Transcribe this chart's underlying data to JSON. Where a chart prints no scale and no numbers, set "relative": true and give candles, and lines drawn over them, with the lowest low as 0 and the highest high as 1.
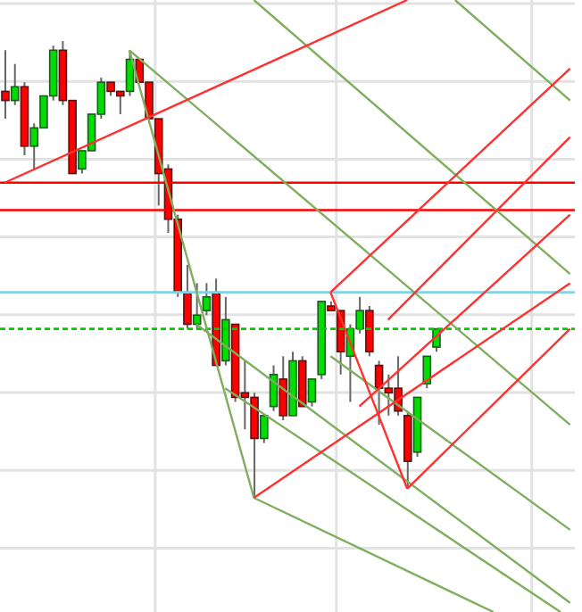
{
  "chart_data": {
    "type": "candlestick",
    "relative": true,
    "grid": true,
    "tick_labels": false,
    "categories": [
      null,
      null,
      null,
      null,
      null,
      null,
      null,
      null,
      null,
      null,
      null,
      null,
      null,
      null,
      null,
      null,
      null,
      null,
      null,
      null,
      null,
      null,
      null,
      null,
      null,
      null,
      null,
      null,
      null,
      null,
      null,
      null,
      null,
      null,
      null,
      null,
      null,
      null,
      null,
      null,
      null,
      null,
      null,
      null,
      null,
      null,
      null,
      null,
      null,
      null,
      null,
      null,
      null,
      null,
      null,
      null,
      null,
      null,
      null,
      null
    ],
    "ohlc": [
      [
        0.89,
        0.98,
        0.83,
        0.87
      ],
      [
        0.87,
        0.95,
        0.86,
        0.9
      ],
      [
        0.9,
        0.91,
        0.75,
        0.77
      ],
      [
        0.77,
        0.82,
        0.72,
        0.81
      ],
      [
        0.81,
        0.88,
        0.81,
        0.88
      ],
      [
        0.88,
        0.99,
        0.87,
        0.98
      ],
      [
        0.98,
        1,
        0.86,
        0.87
      ],
      [
        0.87,
        0.87,
        0.71,
        0.71
      ],
      [
        0.72,
        0.76,
        0.71,
        0.76
      ],
      [
        0.76,
        0.84,
        0.76,
        0.84
      ],
      [
        0.84,
        0.92,
        0.83,
        0.91
      ],
      [
        0.91,
        0.91,
        0.88,
        0.89
      ],
      [
        0.89,
        0.89,
        0.84,
        0.88
      ],
      [
        0.89,
        0.98,
        0.88,
        0.96
      ],
      [
        0.96,
        0.96,
        0.91,
        0.91
      ],
      [
        0.91,
        0.91,
        0.82,
        0.83
      ],
      [
        0.83,
        0.83,
        0.64,
        0.71
      ],
      [
        0.72,
        0.73,
        0.58,
        0.61
      ],
      [
        0.61,
        0.62,
        0.44,
        0.45
      ],
      [
        0.45,
        0.51,
        0.37,
        0.38
      ],
      [
        0.38,
        0.47,
        0.37,
        0.4
      ],
      [
        0.41,
        0.47,
        0.4,
        0.44
      ],
      [
        0.45,
        0.48,
        0.29,
        0.29
      ],
      [
        0.3,
        0.44,
        0.29,
        0.39
      ],
      [
        0.38,
        0.38,
        0.21,
        0.22
      ],
      [
        0.23,
        0.3,
        0.15,
        0.22
      ],
      [
        0.22,
        0.23,
        0,
        0.13
      ],
      [
        0.13,
        0.18,
        0.12,
        0.18
      ],
      [
        0.2,
        0.29,
        0.19,
        0.27
      ],
      [
        0.26,
        0.31,
        0.17,
        0.18
      ],
      [
        0.18,
        0.32,
        0.18,
        0.3
      ],
      [
        0.3,
        0.31,
        0.2,
        0.2
      ],
      [
        0.21,
        0.26,
        0.2,
        0.26
      ],
      [
        0.27,
        0.43,
        0.26,
        0.43
      ],
      [
        0.42,
        0.43,
        0.41,
        0.41
      ],
      [
        0.41,
        0.41,
        0.27,
        0.32
      ],
      [
        0.31,
        0.38,
        0.21,
        0.37
      ],
      [
        0.37,
        0.44,
        0.36,
        0.41
      ],
      [
        0.41,
        0.42,
        0.31,
        0.32
      ],
      [
        0.29,
        0.3,
        0.16,
        0.24
      ],
      [
        0.24,
        0.27,
        0.18,
        0.23
      ],
      [
        0.24,
        0.31,
        0.18,
        0.19
      ],
      [
        0.18,
        0.19,
        0.02,
        0.08
      ],
      [
        0.1,
        0.22,
        0.09,
        0.22
      ],
      [
        0.25,
        0.31,
        0.24,
        0.31
      ],
      [
        0.33,
        0.37,
        0.32,
        0.37
      ],
      null,
      null,
      null,
      null,
      null,
      null,
      null,
      null,
      null,
      null,
      null,
      null,
      null,
      null
    ],
    "colors": [
      "#ff0000",
      "#00dd00",
      "#ff0000",
      "#00dd00",
      "#00dd00",
      "#00dd00",
      "#ff0000",
      "#ff0000",
      "#00dd00",
      "#00dd00",
      "#00dd00",
      "#ff0000",
      "#ff0000",
      "#00dd00",
      "#ff0000",
      "#ff0000",
      "#ff0000",
      "#ff0000",
      "#ff0000",
      "#ff0000",
      "#00dd00",
      "#00dd00",
      "#ff0000",
      "#00dd00",
      "#ff0000",
      "#ff0000",
      "#ff0000",
      "#00dd00",
      "#00dd00",
      "#ff0000",
      "#00dd00",
      "#ff0000",
      "#00dd00",
      "#00dd00",
      "#ff0000",
      "#ff0000",
      "#00dd00",
      "#00dd00",
      "#ff0000",
      "#ff0000",
      "#ff0000",
      "#ff0000",
      "#ff0000",
      "#00dd00",
      "#00dd00",
      "#00dd00",
      null,
      null,
      null,
      null,
      null,
      null,
      null,
      null,
      null,
      null,
      null,
      null,
      null,
      null
    ],
    "series": [
      {
        "type": "line",
        "color": "#7fae5e",
        "values": [
          null,
          null,
          null,
          null,
          null,
          null,
          null,
          null,
          null,
          null,
          null,
          null,
          null,
          0.98,
          null,
          null,
          null,
          null,
          null,
          null,
          null,
          null,
          null,
          null,
          null,
          null,
          0,
          null,
          null,
          null,
          null,
          null,
          null,
          null,
          null,
          null,
          null,
          null,
          null,
          null,
          null,
          null,
          null,
          null,
          null,
          null,
          null,
          null,
          null,
          null,
          null,
          null,
          null,
          null,
          null,
          null,
          null,
          null,
          null,
          null
        ]
      },
      {
        "type": "line",
        "color": "#7fae5e",
        "values": [
          null,
          null,
          null,
          null,
          null,
          null,
          null,
          null,
          null,
          null,
          null,
          null,
          null,
          0.98,
          null,
          null,
          null,
          null,
          null,
          null,
          null,
          null,
          null,
          null,
          null,
          null,
          null,
          null,
          null,
          null,
          null,
          null,
          null,
          null,
          null,
          null,
          null,
          null,
          null,
          null,
          null,
          null,
          null,
          null,
          null,
          null,
          null,
          null,
          null,
          null,
          null,
          null,
          null,
          null,
          null,
          null,
          null,
          null,
          null,
          0.16
        ]
      },
      {
        "type": "line",
        "color": "#7fae5e",
        "values": [
          null,
          null,
          null,
          null,
          null,
          null,
          null,
          null,
          null,
          null,
          null,
          null,
          null,
          null,
          null,
          null,
          null,
          null,
          null,
          null,
          null,
          null,
          null,
          null,
          null,
          null,
          1.09,
          null,
          null,
          null,
          null,
          null,
          null,
          null,
          null,
          null,
          null,
          null,
          null,
          null,
          null,
          null,
          null,
          null,
          null,
          null,
          null,
          null,
          null,
          null,
          null,
          null,
          null,
          null,
          null,
          null,
          null,
          null,
          null,
          0.49
        ]
      },
      {
        "type": "line",
        "color": "#7fae5e",
        "values": [
          null,
          null,
          null,
          null,
          null,
          null,
          null,
          null,
          null,
          null,
          null,
          null,
          null,
          null,
          null,
          null,
          null,
          null,
          null,
          null,
          null,
          null,
          null,
          null,
          null,
          null,
          null,
          null,
          null,
          null,
          null,
          null,
          null,
          null,
          null,
          null,
          null,
          null,
          null,
          null,
          null,
          null,
          null,
          null,
          null,
          null,
          null,
          1.09,
          null,
          null,
          null,
          null,
          null,
          null,
          null,
          null,
          null,
          null,
          null,
          0.87
        ]
      },
      {
        "type": "line",
        "color": "#7fae5e",
        "values": [
          null,
          null,
          null,
          null,
          null,
          null,
          null,
          null,
          null,
          null,
          null,
          null,
          null,
          null,
          null,
          null,
          null,
          null,
          null,
          null,
          0.38,
          null,
          null,
          null,
          null,
          null,
          null,
          null,
          null,
          null,
          null,
          null,
          null,
          null,
          null,
          null,
          null,
          null,
          null,
          null,
          null,
          null,
          null,
          null,
          null,
          null,
          null,
          null,
          null,
          null,
          null,
          null,
          null,
          null,
          null,
          null,
          null,
          null,
          null,
          -0.23
        ]
      },
      {
        "type": "line",
        "color": "#7fae5e",
        "values": [
          null,
          null,
          null,
          null,
          null,
          null,
          null,
          null,
          null,
          null,
          null,
          null,
          null,
          null,
          null,
          null,
          null,
          null,
          null,
          null,
          null,
          null,
          null,
          null,
          null,
          null,
          0,
          null,
          null,
          null,
          null,
          null,
          null,
          null,
          null,
          null,
          null,
          null,
          null,
          null,
          null,
          null,
          null,
          null,
          null,
          null,
          null,
          null,
          null,
          null,
          null,
          -0.25,
          null,
          null,
          null,
          null,
          null,
          null,
          null,
          null
        ]
      },
      {
        "type": "line",
        "color": "#7fae5e",
        "values": [
          null,
          null,
          null,
          null,
          null,
          null,
          null,
          null,
          null,
          null,
          null,
          null,
          null,
          null,
          null,
          null,
          null,
          null,
          null,
          null,
          null,
          null,
          null,
          0.24,
          null,
          null,
          null,
          null,
          null,
          null,
          null,
          null,
          null,
          null,
          null,
          null,
          null,
          null,
          null,
          null,
          null,
          null,
          null,
          null,
          null,
          null,
          null,
          null,
          null,
          null,
          null,
          null,
          null,
          null,
          null,
          null,
          null,
          null,
          -0.25,
          null
        ]
      },
      {
        "type": "line",
        "color": "#7fae5e",
        "values": [
          null,
          null,
          null,
          null,
          null,
          null,
          null,
          null,
          null,
          null,
          null,
          null,
          null,
          null,
          null,
          null,
          null,
          null,
          null,
          null,
          null,
          null,
          null,
          null,
          null,
          null,
          null,
          null,
          null,
          null,
          null,
          null,
          null,
          null,
          0.31,
          null,
          null,
          null,
          null,
          null,
          null,
          null,
          null,
          null,
          null,
          null,
          null,
          null,
          null,
          null,
          null,
          null,
          null,
          null,
          null,
          null,
          null,
          null,
          null,
          -0.07
        ]
      },
      {
        "type": "line",
        "color": "#ff3030",
        "values": [
          0.69,
          null,
          null,
          null,
          null,
          null,
          null,
          null,
          null,
          null,
          null,
          null,
          null,
          null,
          null,
          null,
          null,
          null,
          null,
          null,
          null,
          null,
          null,
          null,
          null,
          null,
          null,
          null,
          null,
          null,
          null,
          null,
          null,
          null,
          null,
          null,
          null,
          null,
          null,
          null,
          null,
          null,
          1.09,
          null,
          null,
          null,
          null,
          null,
          null,
          null,
          null,
          null,
          null,
          null,
          null,
          null,
          null,
          null,
          null,
          null
        ]
      },
      {
        "type": "line",
        "color": "#ff3030",
        "values": [
          null,
          null,
          null,
          null,
          null,
          null,
          null,
          null,
          null,
          null,
          null,
          null,
          null,
          null,
          null,
          null,
          null,
          null,
          null,
          null,
          null,
          null,
          null,
          null,
          null,
          null,
          0,
          null,
          null,
          null,
          null,
          null,
          null,
          null,
          null,
          null,
          null,
          null,
          null,
          null,
          null,
          null,
          null,
          null,
          null,
          null,
          null,
          null,
          null,
          null,
          null,
          null,
          null,
          null,
          null,
          null,
          null,
          null,
          null,
          0.47
        ]
      },
      {
        "type": "line",
        "color": "#ff3030",
        "values": [
          null,
          null,
          null,
          null,
          null,
          null,
          null,
          null,
          null,
          null,
          null,
          null,
          null,
          null,
          null,
          null,
          null,
          null,
          null,
          null,
          null,
          null,
          null,
          null,
          null,
          null,
          null,
          null,
          null,
          null,
          null,
          null,
          null,
          null,
          null,
          null,
          null,
          null,
          null,
          null,
          null,
          null,
          0.02,
          null,
          null,
          null,
          null,
          null,
          null,
          null,
          null,
          null,
          null,
          null,
          null,
          null,
          null,
          null,
          null,
          0.37
        ]
      },
      {
        "type": "line",
        "color": "#ff3030",
        "values": [
          null,
          null,
          null,
          null,
          null,
          null,
          null,
          null,
          null,
          null,
          null,
          null,
          null,
          null,
          null,
          null,
          null,
          null,
          null,
          null,
          null,
          null,
          null,
          null,
          null,
          null,
          null,
          null,
          null,
          null,
          null,
          null,
          null,
          null,
          0.45,
          null,
          null,
          null,
          null,
          null,
          null,
          null,
          0.02,
          null,
          null,
          null,
          null,
          null,
          null,
          null,
          null,
          null,
          null,
          null,
          null,
          null,
          null,
          null,
          null,
          null
        ]
      },
      {
        "type": "line",
        "color": "#ff3030",
        "values": [
          null,
          null,
          null,
          null,
          null,
          null,
          null,
          null,
          null,
          null,
          null,
          null,
          null,
          null,
          null,
          null,
          null,
          null,
          null,
          null,
          null,
          null,
          null,
          null,
          null,
          null,
          null,
          null,
          null,
          null,
          null,
          null,
          null,
          null,
          0.45,
          null,
          null,
          null,
          null,
          null,
          null,
          null,
          null,
          null,
          null,
          null,
          null,
          null,
          null,
          null,
          null,
          null,
          null,
          null,
          null,
          null,
          null,
          null,
          null,
          0.94
        ]
      },
      {
        "type": "line",
        "color": "#ff3030",
        "values": [
          null,
          null,
          null,
          null,
          null,
          null,
          null,
          null,
          null,
          null,
          null,
          null,
          null,
          null,
          null,
          null,
          null,
          null,
          null,
          null,
          null,
          null,
          null,
          null,
          null,
          null,
          null,
          null,
          null,
          null,
          null,
          null,
          null,
          null,
          null,
          null,
          null,
          null,
          null,
          null,
          0.39,
          null,
          null,
          null,
          null,
          null,
          null,
          null,
          null,
          null,
          null,
          null,
          null,
          null,
          null,
          null,
          null,
          null,
          null,
          0.79
        ]
      },
      {
        "type": "line",
        "color": "#ff3030",
        "values": [
          null,
          null,
          null,
          null,
          null,
          null,
          null,
          null,
          null,
          null,
          null,
          null,
          null,
          null,
          null,
          null,
          null,
          null,
          null,
          null,
          null,
          null,
          null,
          null,
          null,
          null,
          null,
          null,
          null,
          null,
          null,
          null,
          null,
          null,
          null,
          null,
          null,
          0.2,
          null,
          null,
          null,
          null,
          null,
          null,
          null,
          null,
          null,
          null,
          null,
          null,
          null,
          null,
          null,
          null,
          null,
          null,
          null,
          null,
          null,
          0.62
        ]
      }
    ],
    "ref_lines": [
      {
        "axis": "y",
        "value": 0.69,
        "color": "#ff0000",
        "line_style": "solid"
      },
      {
        "axis": "y",
        "value": 0.63,
        "color": "#ff0000",
        "line_style": "solid"
      },
      {
        "axis": "y",
        "value": 0.45,
        "color": "#7fd3e3",
        "line_style": "solid"
      },
      {
        "axis": "y",
        "value": 0.37,
        "color": "#00cc00",
        "line_style": "dashed"
      }
    ]
  }
}
